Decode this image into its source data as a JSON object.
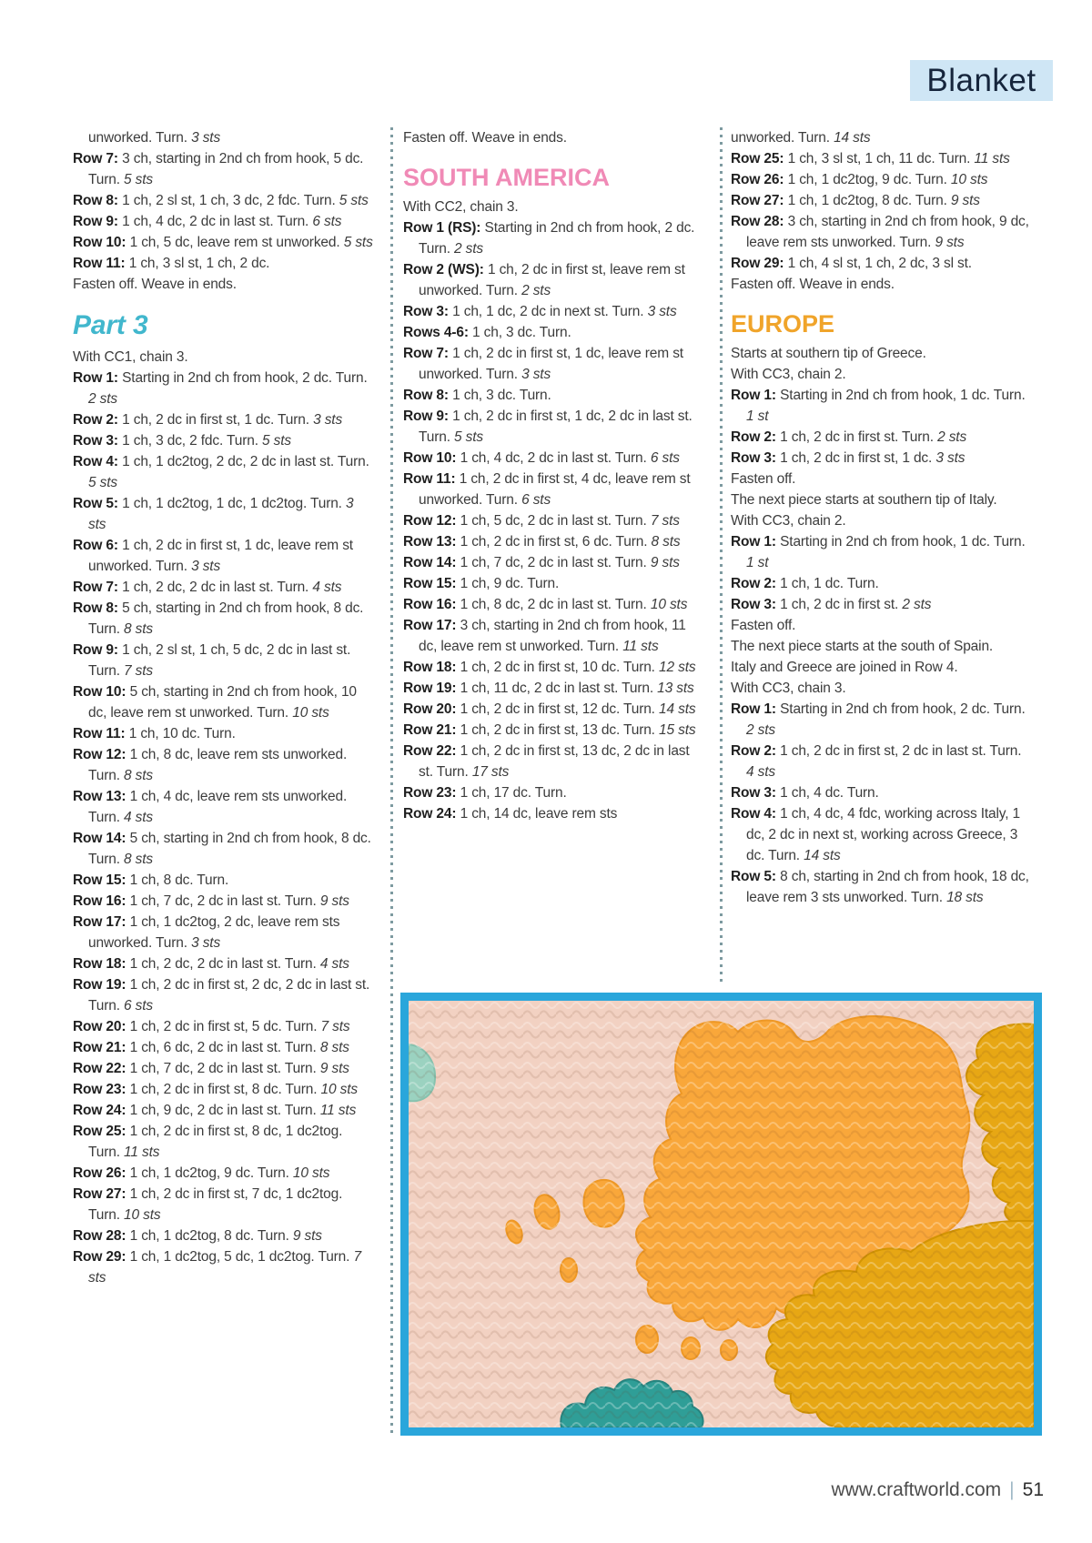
{
  "header": {
    "tab_label": "Blanket"
  },
  "footer": {
    "url": "www.craftworld.com",
    "separator": "|",
    "page_number": "51"
  },
  "colors": {
    "accent_photo_border": "#2aa6db",
    "tab_background": "#cfe6f5",
    "tab_text": "#16253c",
    "heading_teal": "#41b7cd",
    "heading_pink": "#f08ab6",
    "heading_gold": "#f0a42a",
    "body_text": "#3c3c3c",
    "separator_dots": "#7d9aa0",
    "yarn_pink_background": "#f2d1c2",
    "yarn_orange_europe": "#f9a73a",
    "yarn_gold_right_piece": "#e7a714",
    "yarn_teal_patch": "#2f9e97",
    "yarn_mint_patch": "#9bd2c0"
  },
  "photo": {
    "description": "crochet map blanket detail showing Europe in orange yarn"
  },
  "columns": [
    {
      "name": "column-1",
      "blocks": [
        {
          "type": "cont",
          "indent": true,
          "text": "unworked. Turn.",
          "sts": "3 sts"
        },
        {
          "type": "row",
          "bold": "Row 7:",
          "text": "3 ch, starting in 2nd ch from hook, 5 dc. Turn.",
          "sts": "5 sts"
        },
        {
          "type": "row",
          "bold": "Row 8:",
          "text": "1 ch, 2 sl st, 1 ch, 3 dc, 2 fdc. Turn.",
          "sts": "5 sts"
        },
        {
          "type": "row",
          "bold": "Row 9:",
          "text": "1 ch, 4 dc, 2 dc in last st. Turn.",
          "sts": "6 sts"
        },
        {
          "type": "row",
          "bold": "Row 10:",
          "text": "1 ch, 5 dc, leave rem st unworked.",
          "sts": "5 sts"
        },
        {
          "type": "row",
          "bold": "Row 11:",
          "text": "1 ch, 3 sl st, 1 ch, 2 dc."
        },
        {
          "type": "plain",
          "text": "Fasten off. Weave in ends."
        },
        {
          "type": "heading",
          "style": "part",
          "text": "Part 3"
        },
        {
          "type": "plain",
          "text": "With CC1, chain 3."
        },
        {
          "type": "row",
          "bold": "Row 1:",
          "text": "Starting in 2nd ch from hook, 2 dc. Turn.",
          "sts": "2 sts"
        },
        {
          "type": "row",
          "bold": "Row 2:",
          "text": "1 ch, 2 dc in first st, 1 dc. Turn.",
          "sts": "3 sts"
        },
        {
          "type": "row",
          "bold": "Row 3:",
          "text": "1 ch, 3 dc, 2 fdc. Turn.",
          "sts": "5 sts"
        },
        {
          "type": "row",
          "bold": "Row 4:",
          "text": "1 ch, 1 dc2tog, 2 dc, 2 dc in last st. Turn.",
          "sts": "5 sts"
        },
        {
          "type": "row",
          "bold": "Row 5:",
          "text": "1 ch, 1 dc2tog, 1 dc, 1 dc2tog. Turn.",
          "sts": "3 sts"
        },
        {
          "type": "row",
          "bold": "Row 6:",
          "text": "1 ch, 2 dc in first st, 1 dc, leave rem st unworked. Turn.",
          "sts": "3 sts"
        },
        {
          "type": "row",
          "bold": "Row 7:",
          "text": "1 ch, 2 dc, 2 dc in last st. Turn.",
          "sts": "4 sts"
        },
        {
          "type": "row",
          "bold": "Row 8:",
          "text": "5 ch, starting in 2nd ch from hook, 8 dc. Turn.",
          "sts": "8 sts"
        },
        {
          "type": "row",
          "bold": "Row 9:",
          "text": "1 ch, 2 sl st, 1 ch, 5 dc, 2 dc in last st. Turn.",
          "sts": "7 sts"
        },
        {
          "type": "row",
          "bold": "Row 10:",
          "text": "5 ch, starting in 2nd ch from hook, 10 dc, leave rem st unworked. Turn.",
          "sts": "10 sts"
        },
        {
          "type": "row",
          "bold": "Row 11:",
          "text": "1 ch, 10 dc. Turn."
        },
        {
          "type": "row",
          "bold": "Row 12:",
          "text": "1 ch, 8 dc, leave rem sts unworked. Turn.",
          "sts": "8 sts"
        },
        {
          "type": "row",
          "bold": "Row 13:",
          "text": "1 ch, 4 dc, leave rem sts unworked. Turn.",
          "sts": "4 sts"
        },
        {
          "type": "row",
          "bold": "Row 14:",
          "text": "5 ch, starting in 2nd ch from hook, 8 dc. Turn.",
          "sts": "8 sts"
        },
        {
          "type": "row",
          "bold": "Row 15:",
          "text": "1 ch, 8 dc. Turn."
        },
        {
          "type": "row",
          "bold": "Row 16:",
          "text": "1 ch, 7 dc, 2 dc in last st. Turn.",
          "sts": "9 sts"
        },
        {
          "type": "row",
          "bold": "Row 17:",
          "text": "1 ch, 1 dc2tog, 2 dc, leave rem sts unworked. Turn.",
          "sts": "3 sts"
        },
        {
          "type": "row",
          "bold": "Row 18:",
          "text": "1 ch, 2 dc, 2 dc in last st. Turn.",
          "sts": "4 sts"
        },
        {
          "type": "row",
          "bold": "Row 19:",
          "text": "1 ch, 2 dc in first st, 2 dc, 2 dc in last st. Turn.",
          "sts": "6 sts"
        },
        {
          "type": "row",
          "bold": "Row 20:",
          "text": "1 ch, 2 dc in first st, 5 dc. Turn.",
          "sts": "7 sts"
        },
        {
          "type": "row",
          "bold": "Row 21:",
          "text": "1 ch, 6 dc, 2 dc in last st. Turn.",
          "sts": "8 sts"
        },
        {
          "type": "row",
          "bold": "Row 22:",
          "text": "1 ch, 7 dc, 2 dc in last st. Turn.",
          "sts": "9 sts"
        },
        {
          "type": "row",
          "bold": "Row 23:",
          "text": "1 ch, 2 dc in first st, 8 dc. Turn.",
          "sts": "10 sts"
        },
        {
          "type": "row",
          "bold": "Row 24:",
          "text": "1 ch, 9 dc, 2 dc in last st. Turn.",
          "sts": "11 sts"
        },
        {
          "type": "row",
          "bold": "Row 25:",
          "text": "1 ch, 2 dc in first st, 8 dc, 1 dc2tog. Turn.",
          "sts": "11 sts"
        },
        {
          "type": "row",
          "bold": "Row 26:",
          "text": "1 ch, 1 dc2tog, 9 dc. Turn.",
          "sts": "10 sts"
        },
        {
          "type": "row",
          "bold": "Row 27:",
          "text": "1 ch, 2 dc in first st, 7 dc, 1 dc2tog. Turn.",
          "sts": "10 sts"
        },
        {
          "type": "row",
          "bold": "Row 28:",
          "text": "1 ch, 1 dc2tog, 8 dc. Turn.",
          "sts": "9 sts"
        },
        {
          "type": "row",
          "bold": "Row 29:",
          "text": "1 ch, 1 dc2tog, 5 dc, 1 dc2tog. Turn.",
          "sts": "7 sts"
        }
      ]
    },
    {
      "name": "column-2",
      "blocks": [
        {
          "type": "plain",
          "text": "Fasten off. Weave in ends."
        },
        {
          "type": "heading",
          "style": "pink",
          "text": "SOUTH AMERICA"
        },
        {
          "type": "plain",
          "text": "With CC2, chain 3."
        },
        {
          "type": "row",
          "bold": "Row 1 (RS):",
          "text": "Starting in 2nd ch from hook, 2 dc. Turn.",
          "sts": "2 sts"
        },
        {
          "type": "row",
          "bold": "Row 2 (WS):",
          "text": "1 ch, 2 dc in first st, leave rem st unworked. Turn.",
          "sts": "2 sts"
        },
        {
          "type": "row",
          "bold": "Row 3:",
          "text": "1 ch, 1 dc, 2 dc in next st. Turn.",
          "sts": "3 sts"
        },
        {
          "type": "row",
          "bold": "Rows 4-6:",
          "text": "1 ch, 3 dc. Turn."
        },
        {
          "type": "row",
          "bold": "Row 7:",
          "text": "1 ch, 2 dc in first st, 1 dc, leave rem st unworked. Turn.",
          "sts": "3 sts"
        },
        {
          "type": "row",
          "bold": "Row 8:",
          "text": "1 ch, 3 dc. Turn."
        },
        {
          "type": "row",
          "bold": "Row 9:",
          "text": "1 ch, 2 dc in first st, 1 dc, 2 dc in last st. Turn.",
          "sts": "5 sts"
        },
        {
          "type": "row",
          "bold": "Row 10:",
          "text": "1 ch, 4 dc, 2 dc in last st. Turn.",
          "sts": "6 sts"
        },
        {
          "type": "row",
          "bold": "Row 11:",
          "text": "1 ch, 2 dc in first st, 4 dc, leave rem st unworked. Turn.",
          "sts": "6 sts"
        },
        {
          "type": "row",
          "bold": "Row 12:",
          "text": "1 ch, 5 dc, 2 dc in last st. Turn.",
          "sts": "7 sts"
        },
        {
          "type": "row",
          "bold": "Row 13:",
          "text": "1 ch, 2 dc in first st, 6 dc. Turn.",
          "sts": "8 sts"
        },
        {
          "type": "row",
          "bold": "Row 14:",
          "text": "1 ch, 7 dc, 2 dc in last st. Turn.",
          "sts": "9 sts"
        },
        {
          "type": "row",
          "bold": "Row 15:",
          "text": "1 ch, 9 dc. Turn."
        },
        {
          "type": "row",
          "bold": "Row 16:",
          "text": "1 ch, 8 dc, 2 dc in last st. Turn.",
          "sts": "10 sts"
        },
        {
          "type": "row",
          "bold": "Row 17:",
          "text": "3 ch, starting in 2nd ch from hook, 11 dc, leave rem st unworked. Turn.",
          "sts": "11 sts"
        },
        {
          "type": "row",
          "bold": "Row 18:",
          "text": "1 ch, 2 dc in first st, 10 dc. Turn.",
          "sts": "12 sts"
        },
        {
          "type": "row",
          "bold": "Row 19:",
          "text": "1 ch, 11 dc, 2 dc in last st. Turn.",
          "sts": "13 sts"
        },
        {
          "type": "row",
          "bold": "Row 20:",
          "text": "1 ch, 2 dc in first st, 12 dc. Turn.",
          "sts": "14 sts"
        },
        {
          "type": "row",
          "bold": "Row 21:",
          "text": "1 ch, 2 dc in first st, 13 dc. Turn.",
          "sts": "15 sts"
        },
        {
          "type": "row",
          "bold": "Row 22:",
          "text": "1 ch, 2 dc in first st, 13 dc, 2 dc in last st. Turn.",
          "sts": "17 sts"
        },
        {
          "type": "row",
          "bold": "Row 23:",
          "text": "1 ch, 17 dc. Turn."
        },
        {
          "type": "row",
          "bold": "Row 24:",
          "text": "1 ch, 14 dc, leave rem sts"
        }
      ]
    },
    {
      "name": "column-3",
      "blocks": [
        {
          "type": "cont",
          "indent": false,
          "text": "unworked. Turn.",
          "sts": "14 sts"
        },
        {
          "type": "row",
          "bold": "Row 25:",
          "text": "1 ch, 3 sl st, 1 ch, 11 dc. Turn.",
          "sts": "11 sts"
        },
        {
          "type": "row",
          "bold": "Row 26:",
          "text": "1 ch, 1 dc2tog, 9 dc. Turn.",
          "sts": "10 sts"
        },
        {
          "type": "row",
          "bold": "Row 27:",
          "text": "1 ch, 1 dc2tog, 8 dc. Turn.",
          "sts": "9 sts"
        },
        {
          "type": "row",
          "bold": "Row 28:",
          "text": "3 ch, starting in 2nd ch from hook, 9 dc, leave rem sts unworked. Turn.",
          "sts": "9 sts"
        },
        {
          "type": "row",
          "bold": "Row 29:",
          "text": "1 ch, 4 sl st, 1 ch, 2 dc, 3 sl st."
        },
        {
          "type": "plain",
          "text": "Fasten off. Weave in ends."
        },
        {
          "type": "heading",
          "style": "gold",
          "text": "EUROPE"
        },
        {
          "type": "plain",
          "text": "Starts at southern tip of Greece."
        },
        {
          "type": "plain",
          "text": "With CC3, chain 2."
        },
        {
          "type": "row",
          "bold": "Row 1:",
          "text": "Starting in 2nd ch from hook, 1 dc. Turn.",
          "sts": "1 st"
        },
        {
          "type": "row",
          "bold": "Row 2:",
          "text": "1 ch, 2 dc in first st. Turn.",
          "sts": "2 sts"
        },
        {
          "type": "row",
          "bold": "Row 3:",
          "text": "1 ch, 2 dc in first st, 1 dc.",
          "sts": "3 sts"
        },
        {
          "type": "plain",
          "text": "Fasten off."
        },
        {
          "type": "plain",
          "text": "The next piece starts at southern tip of Italy."
        },
        {
          "type": "plain",
          "text": "With CC3, chain 2."
        },
        {
          "type": "row",
          "bold": "Row 1:",
          "text": "Starting in 2nd ch from hook, 1 dc. Turn.",
          "sts": "1 st"
        },
        {
          "type": "row",
          "bold": "Row 2:",
          "text": "1 ch, 1 dc. Turn."
        },
        {
          "type": "row",
          "bold": "Row 3:",
          "text": "1 ch, 2 dc in first st.",
          "sts": "2 sts"
        },
        {
          "type": "plain",
          "text": "Fasten off."
        },
        {
          "type": "plain",
          "text": "The next piece starts at the south of Spain."
        },
        {
          "type": "plain",
          "text": "Italy and Greece are joined in Row 4."
        },
        {
          "type": "plain",
          "text": "With CC3, chain 3."
        },
        {
          "type": "row",
          "bold": "Row 1:",
          "text": "Starting in 2nd ch from hook, 2 dc. Turn.",
          "sts": "2 sts"
        },
        {
          "type": "row",
          "bold": "Row 2:",
          "text": "1 ch, 2 dc in first st, 2 dc in last st. Turn.",
          "sts": "4 sts"
        },
        {
          "type": "row",
          "bold": "Row 3:",
          "text": "1 ch, 4 dc. Turn."
        },
        {
          "type": "row",
          "bold": "Row 4:",
          "text": "1 ch, 4 dc, 4 fdc, working across Italy, 1 dc, 2 dc in next st, working across Greece, 3 dc. Turn.",
          "sts": "14 sts"
        },
        {
          "type": "row",
          "bold": "Row 5:",
          "text": "8 ch, starting in 2nd ch from hook, 18 dc, leave rem 3 sts unworked. Turn.",
          "sts": "18 sts"
        }
      ]
    }
  ]
}
